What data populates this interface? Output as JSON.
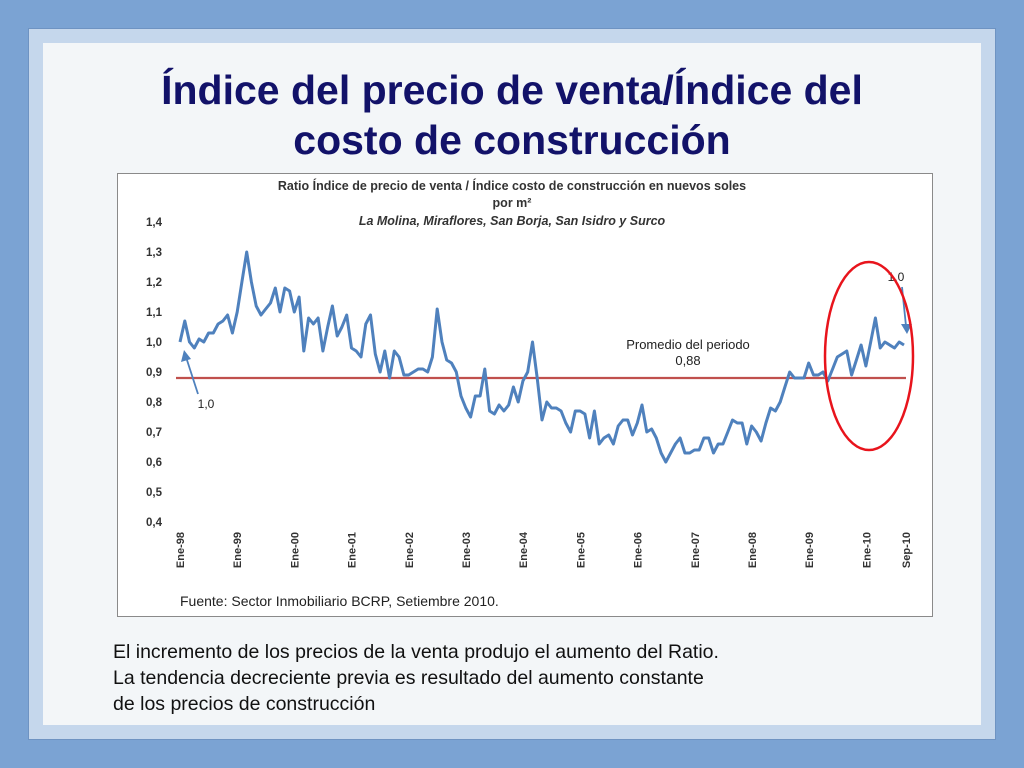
{
  "slide": {
    "title_line1": "Índice del precio de venta/Índice del",
    "title_line2": "costo de construcción",
    "caption_lines": [
      "El incremento de los precios de la venta produjo el aumento del Ratio.",
      "La tendencia decreciente previa es resultado del aumento constante",
      "de los precios de construcción"
    ]
  },
  "colors": {
    "series": "#4f81bd",
    "average_line": "#c0504d",
    "highlight_ellipse": "#e8141c",
    "title": "#121269"
  },
  "chart_data": {
    "type": "line",
    "title_line1": "Ratio Índice de precio de venta / Índice costo de construcción en nuevos soles",
    "title_line2": "por m²",
    "subtitle": "La Molina, Miraflores, San Borja, San Isidro y Surco",
    "source": "Fuente: Sector Inmobiliario BCRP, Setiembre 2010.",
    "ylim": [
      0.4,
      1.4
    ],
    "yticks": [
      "1,4",
      "1,3",
      "1,2",
      "1,1",
      "1,0",
      "0,9",
      "0,8",
      "0,7",
      "0,6",
      "0,5",
      "0,4"
    ],
    "ytick_values": [
      1.4,
      1.3,
      1.2,
      1.1,
      1.0,
      0.9,
      0.8,
      0.7,
      0.6,
      0.5,
      0.4
    ],
    "xticks": [
      "Ene-98",
      "Ene-99",
      "Ene-00",
      "Ene-01",
      "Ene-02",
      "Ene-03",
      "Ene-04",
      "Ene-05",
      "Ene-06",
      "Ene-07",
      "Ene-08",
      "Ene-09",
      "Ene-10",
      "Sep-10"
    ],
    "average": {
      "label_line1": "Promedio del periodo",
      "label_line2": "0,88",
      "value": 0.88
    },
    "annotations": {
      "start_label": "1,0",
      "end_label": "1,0"
    },
    "series": [
      {
        "values": [
          1.0,
          1.07,
          1.0,
          0.98,
          1.01,
          1.0,
          1.03,
          1.03,
          1.06,
          1.07,
          1.09,
          1.03,
          1.1,
          1.2,
          1.3,
          1.2,
          1.12,
          1.09,
          1.11,
          1.13,
          1.18,
          1.1,
          1.18,
          1.17,
          1.1,
          1.15,
          0.97,
          1.08,
          1.06,
          1.08,
          0.97,
          1.05,
          1.12,
          1.02,
          1.05,
          1.09,
          0.98,
          0.97,
          0.95,
          1.06,
          1.09,
          0.96,
          0.9,
          0.97,
          0.88,
          0.97,
          0.95,
          0.89,
          0.89,
          0.9,
          0.91,
          0.91,
          0.9,
          0.95,
          1.11,
          1.0,
          0.94,
          0.93,
          0.9,
          0.82,
          0.78,
          0.75,
          0.82,
          0.82,
          0.91,
          0.77,
          0.76,
          0.79,
          0.77,
          0.79,
          0.85,
          0.8,
          0.87,
          0.9,
          1.0,
          0.88,
          0.74,
          0.8,
          0.78,
          0.78,
          0.77,
          0.73,
          0.7,
          0.77,
          0.77,
          0.76,
          0.68,
          0.77,
          0.66,
          0.68,
          0.69,
          0.66,
          0.72,
          0.74,
          0.74,
          0.69,
          0.73,
          0.79,
          0.7,
          0.71,
          0.68,
          0.63,
          0.6,
          0.63,
          0.66,
          0.68,
          0.63,
          0.63,
          0.64,
          0.64,
          0.68,
          0.68,
          0.63,
          0.66,
          0.66,
          0.7,
          0.74,
          0.73,
          0.73,
          0.66,
          0.72,
          0.7,
          0.67,
          0.73,
          0.78,
          0.77,
          0.8,
          0.85,
          0.9,
          0.88,
          0.88,
          0.88,
          0.93,
          0.89,
          0.89,
          0.9,
          0.87,
          0.91,
          0.95,
          0.96,
          0.97,
          0.89,
          0.94,
          0.99,
          0.92,
          1.0,
          1.08,
          0.98,
          1.0,
          0.99,
          0.98,
          1.0,
          0.99
        ]
      }
    ]
  }
}
